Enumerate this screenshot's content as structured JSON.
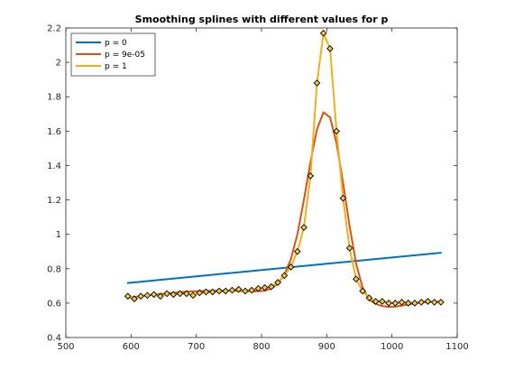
{
  "chart_data": {
    "type": "line",
    "title": "Smoothing splines with different values for p",
    "xlabel": "",
    "ylabel": "",
    "xlim": [
      500,
      1100
    ],
    "ylim": [
      0.4,
      2.2
    ],
    "xticks": [
      500,
      600,
      700,
      800,
      900,
      1000,
      1100
    ],
    "yticks": [
      0.4,
      0.6,
      0.8,
      1,
      1.2,
      1.4,
      1.6,
      1.8,
      2,
      2.2
    ],
    "ytick_labels": [
      "0.4",
      "0.6",
      "0.8",
      "1",
      "1.2",
      "1.4",
      "1.6",
      "1.8",
      "2",
      "2.2"
    ],
    "grid": false,
    "legend_position": "top-left",
    "markers": {
      "style": "diamond",
      "color": "#000000",
      "fill": "#f2c94c",
      "x": [
        595,
        605,
        615,
        625,
        635,
        645,
        655,
        665,
        675,
        685,
        695,
        705,
        715,
        725,
        735,
        745,
        755,
        765,
        775,
        785,
        795,
        805,
        815,
        825,
        835,
        845,
        855,
        865,
        875,
        885,
        895,
        905,
        915,
        925,
        935,
        945,
        955,
        965,
        975,
        985,
        995,
        1005,
        1015,
        1025,
        1035,
        1045,
        1055,
        1065,
        1075
      ],
      "y": [
        0.64,
        0.625,
        0.64,
        0.645,
        0.65,
        0.64,
        0.655,
        0.65,
        0.655,
        0.655,
        0.645,
        0.66,
        0.665,
        0.665,
        0.67,
        0.67,
        0.675,
        0.68,
        0.67,
        0.675,
        0.685,
        0.69,
        0.695,
        0.72,
        0.76,
        0.81,
        0.9,
        1.04,
        1.34,
        1.88,
        2.17,
        2.08,
        1.6,
        1.21,
        0.92,
        0.74,
        0.67,
        0.63,
        0.61,
        0.61,
        0.6,
        0.6,
        0.605,
        0.6,
        0.6,
        0.605,
        0.61,
        0.605,
        0.605
      ]
    },
    "series": [
      {
        "name": "p = 0",
        "color": "#0072bd",
        "x": [
          595,
          1075
        ],
        "y": [
          0.717,
          0.893
        ]
      },
      {
        "name": "p = 9e-05",
        "color": "#d95319",
        "x": [
          595,
          610,
          625,
          640,
          655,
          670,
          685,
          700,
          715,
          730,
          745,
          760,
          775,
          790,
          805,
          815,
          825,
          835,
          845,
          855,
          865,
          875,
          885,
          895,
          905,
          915,
          925,
          935,
          945,
          955,
          965,
          975,
          985,
          995,
          1005,
          1015,
          1025,
          1035,
          1045,
          1055,
          1065,
          1075
        ],
        "y": [
          0.63,
          0.638,
          0.645,
          0.651,
          0.657,
          0.662,
          0.666,
          0.669,
          0.671,
          0.672,
          0.673,
          0.672,
          0.67,
          0.668,
          0.672,
          0.685,
          0.713,
          0.763,
          0.855,
          1.0,
          1.2,
          1.42,
          1.61,
          1.71,
          1.68,
          1.53,
          1.3,
          1.05,
          0.83,
          0.69,
          0.62,
          0.595,
          0.583,
          0.578,
          0.58,
          0.585,
          0.592,
          0.598,
          0.603,
          0.606,
          0.608,
          0.608
        ]
      },
      {
        "name": "p = 1",
        "color": "#edb120",
        "x": [
          595,
          605,
          615,
          625,
          635,
          645,
          655,
          665,
          675,
          685,
          695,
          705,
          715,
          725,
          735,
          745,
          755,
          765,
          775,
          785,
          795,
          805,
          815,
          825,
          835,
          845,
          855,
          865,
          875,
          885,
          895,
          905,
          915,
          925,
          935,
          945,
          955,
          965,
          975,
          985,
          995,
          1005,
          1015,
          1025,
          1035,
          1045,
          1055,
          1065,
          1075
        ],
        "y": [
          0.64,
          0.625,
          0.64,
          0.645,
          0.65,
          0.64,
          0.655,
          0.65,
          0.655,
          0.655,
          0.645,
          0.66,
          0.665,
          0.665,
          0.67,
          0.67,
          0.675,
          0.68,
          0.67,
          0.675,
          0.685,
          0.69,
          0.695,
          0.72,
          0.76,
          0.81,
          0.9,
          1.04,
          1.34,
          1.88,
          2.17,
          2.08,
          1.6,
          1.21,
          0.92,
          0.74,
          0.67,
          0.63,
          0.61,
          0.61,
          0.6,
          0.6,
          0.605,
          0.6,
          0.6,
          0.605,
          0.61,
          0.605,
          0.605
        ]
      }
    ]
  }
}
